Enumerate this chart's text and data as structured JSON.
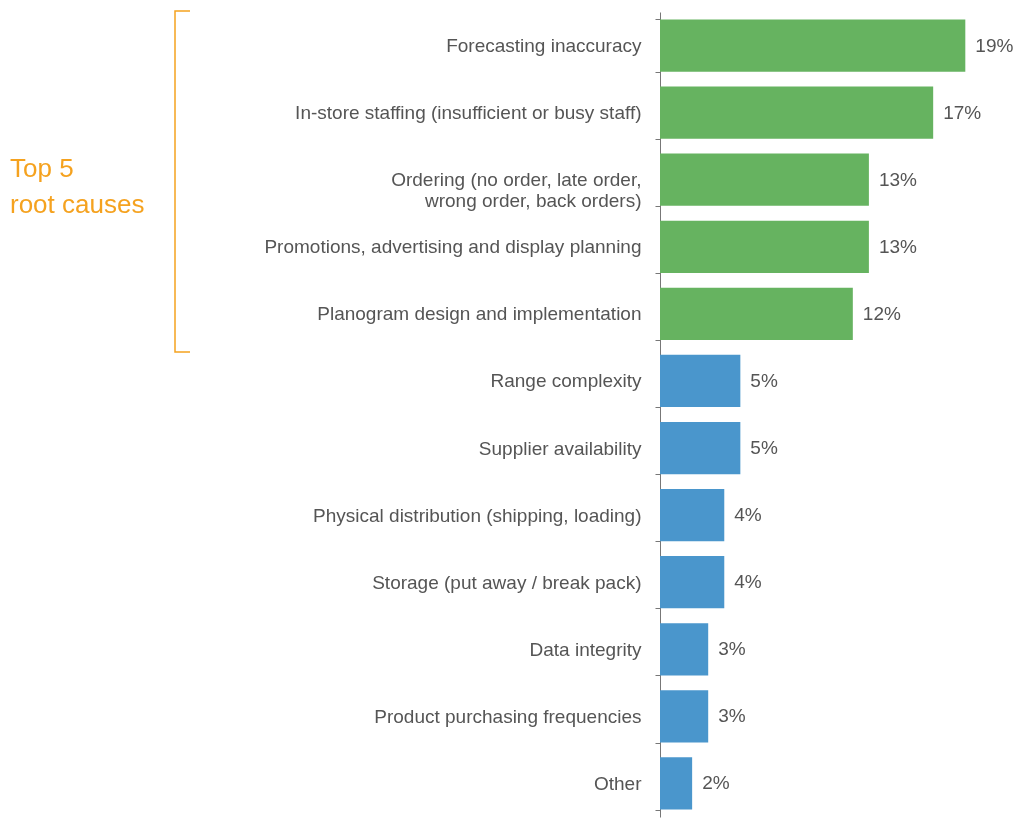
{
  "chart_data": {
    "type": "bar",
    "orientation": "horizontal",
    "categories": [
      "Forecasting inaccuracy",
      "In-store staffing (insufficient or busy staff)",
      "Ordering (no order, late order,\nwrong order, back orders)",
      "Promotions, advertising and display planning",
      "Planogram design and implementation",
      "Range complexity",
      "Supplier availability",
      "Physical distribution (shipping, loading)",
      "Storage (put away / break pack)",
      "Data integrity",
      "Product purchasing frequencies",
      "Other"
    ],
    "values": [
      19,
      17,
      13,
      13,
      12,
      5,
      5,
      4,
      4,
      3,
      3,
      2
    ],
    "value_labels": [
      "19%",
      "17%",
      "13%",
      "13%",
      "12%",
      "5%",
      "5%",
      "4%",
      "4%",
      "3%",
      "3%",
      "2%"
    ],
    "colors": [
      "#66b360",
      "#66b360",
      "#66b360",
      "#66b360",
      "#66b360",
      "#4a96cc",
      "#4a96cc",
      "#4a96cc",
      "#4a96cc",
      "#4a96cc",
      "#4a96cc",
      "#4a96cc"
    ],
    "annotations": [
      "Top 5\nroot causes"
    ]
  }
}
